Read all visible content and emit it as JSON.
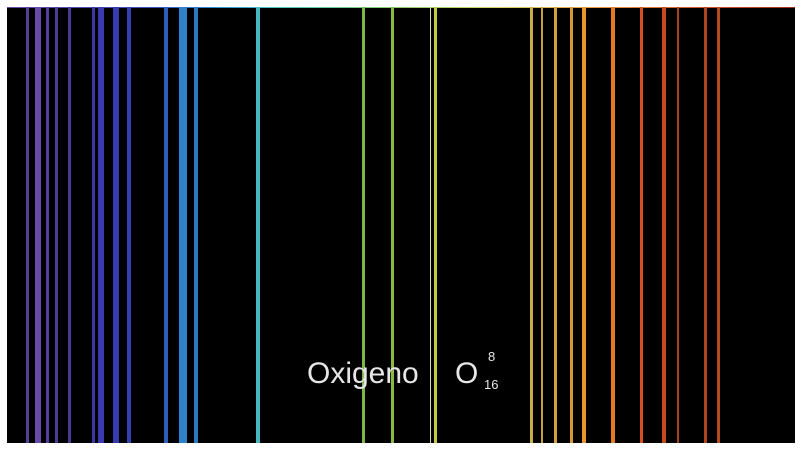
{
  "element": {
    "name": "Oxigeno",
    "symbol": "O",
    "atomic_number": "8",
    "mass_number": "16"
  },
  "spectrum": {
    "background": "#000000",
    "lines": [
      {
        "color": "#5a3f9a"
      },
      {
        "color": "#6a4aa8"
      },
      {
        "color": "#55409c"
      },
      {
        "color": "#4b3c96"
      },
      {
        "color": "#45399a"
      },
      {
        "color": "#3a37a6"
      },
      {
        "color": "#3b3aae"
      },
      {
        "color": "#353cb0"
      },
      {
        "color": "#3340b4"
      },
      {
        "color": "#2e5fb8"
      },
      {
        "color": "#2e82cc"
      },
      {
        "color": "#2a78c0"
      },
      {
        "color": "#48b8c0"
      },
      {
        "color": "#7ab84a"
      },
      {
        "color": "#8ab844"
      },
      {
        "color": "#d0d8a0"
      },
      {
        "color": "#c8c840"
      },
      {
        "color": "#c8b040"
      },
      {
        "color": "#c8a038"
      },
      {
        "color": "#d4a030"
      },
      {
        "color": "#d89830"
      },
      {
        "color": "#e8982a"
      },
      {
        "color": "#e47a22"
      },
      {
        "color": "#d4501e"
      },
      {
        "color": "#c8481e"
      },
      {
        "color": "#a84020"
      },
      {
        "color": "#b04222"
      },
      {
        "color": "#b8481e"
      }
    ]
  }
}
